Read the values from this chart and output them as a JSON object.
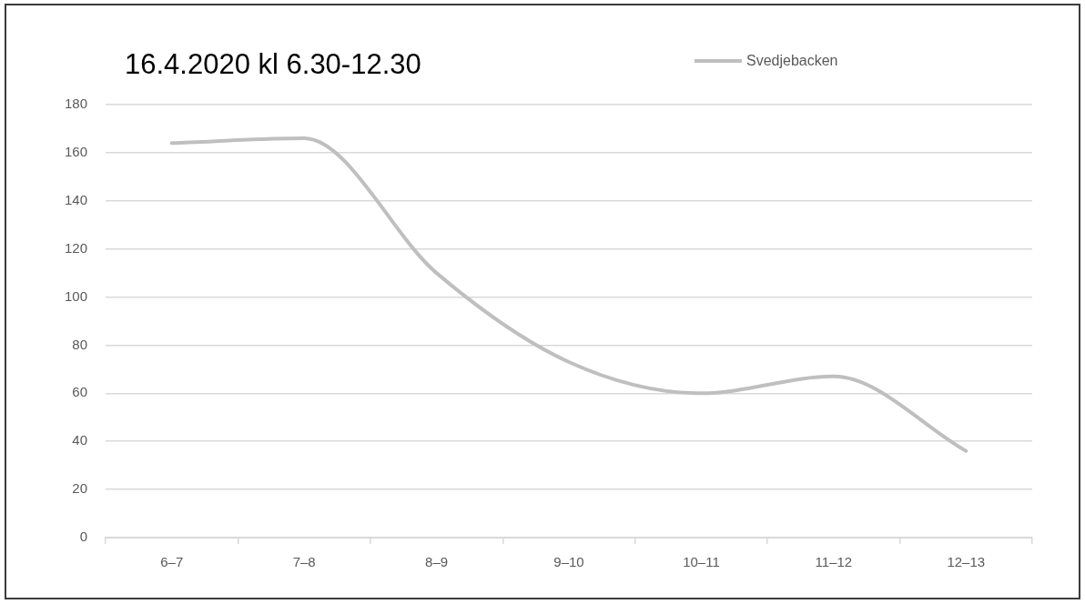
{
  "chart_data": {
    "type": "line",
    "title": "16.4.2020 kl 6.30-12.30",
    "categories": [
      "6–7",
      "7–8",
      "8–9",
      "9–10",
      "10–11",
      "11–12",
      "12–13"
    ],
    "series": [
      {
        "name": "Svedjebacken",
        "color": "#bfbfbf",
        "values": [
          164,
          166,
          110,
          73,
          60,
          67,
          36
        ]
      }
    ],
    "ylim": [
      0,
      180
    ],
    "yticks": [
      0,
      20,
      40,
      60,
      80,
      100,
      120,
      140,
      160,
      180
    ],
    "grid": "y",
    "legend": "top right",
    "marker": "none",
    "line_style": "solid"
  }
}
